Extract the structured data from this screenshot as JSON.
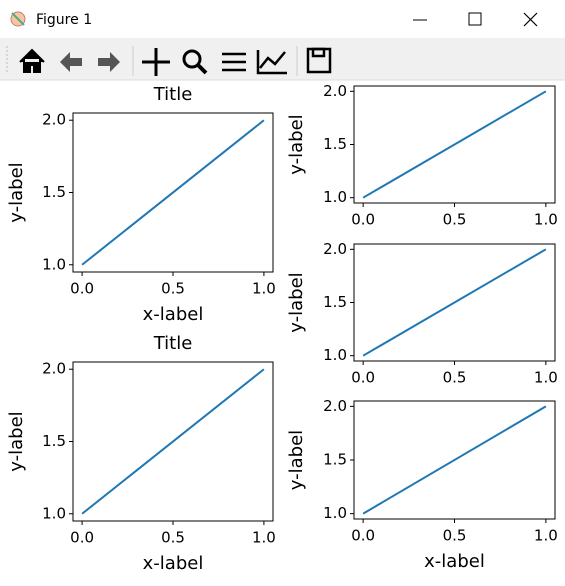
{
  "window": {
    "title": "Figure 1"
  },
  "chart_data": [
    {
      "type": "line",
      "title": "Title",
      "xlabel": "x-label",
      "ylabel": "y-label",
      "x": [
        0,
        1
      ],
      "series": [
        {
          "color": "#1f77b4",
          "values": [
            1,
            2
          ]
        }
      ],
      "xlim": [
        -0.05,
        1.05
      ],
      "ylim": [
        0.95,
        2.05
      ],
      "xticks": [
        {
          "value": 0,
          "label": "0.0"
        },
        {
          "value": 0.5,
          "label": "0.5"
        },
        {
          "value": 1,
          "label": "1.0"
        }
      ],
      "yticks": [
        {
          "value": 1,
          "label": "1.0"
        },
        {
          "value": 1.5,
          "label": "1.5"
        },
        {
          "value": 2,
          "label": "2.0"
        }
      ]
    },
    {
      "type": "line",
      "ylabel": "y-label",
      "x": [
        0,
        1
      ],
      "series": [
        {
          "color": "#1f77b4",
          "values": [
            1,
            2
          ]
        }
      ],
      "xlim": [
        -0.05,
        1.05
      ],
      "ylim": [
        0.95,
        2.05
      ],
      "xticks": [
        {
          "value": 0,
          "label": "0.0"
        },
        {
          "value": 0.5,
          "label": "0.5"
        },
        {
          "value": 1,
          "label": "1.0"
        }
      ],
      "yticks": [
        {
          "value": 1,
          "label": "1.0"
        },
        {
          "value": 1.5,
          "label": "1.5"
        },
        {
          "value": 2,
          "label": "2.0"
        }
      ]
    },
    {
      "type": "line",
      "ylabel": "y-label",
      "x": [
        0,
        1
      ],
      "series": [
        {
          "color": "#1f77b4",
          "values": [
            1,
            2
          ]
        }
      ],
      "xlim": [
        -0.05,
        1.05
      ],
      "ylim": [
        0.95,
        2.05
      ],
      "xticks": [
        {
          "value": 0,
          "label": "0.0"
        },
        {
          "value": 0.5,
          "label": "0.5"
        },
        {
          "value": 1,
          "label": "1.0"
        }
      ],
      "yticks": [
        {
          "value": 1,
          "label": "1.0"
        },
        {
          "value": 1.5,
          "label": "1.5"
        },
        {
          "value": 2,
          "label": "2.0"
        }
      ]
    },
    {
      "type": "line",
      "title": "Title",
      "xlabel": "x-label",
      "ylabel": "y-label",
      "x": [
        0,
        1
      ],
      "series": [
        {
          "color": "#1f77b4",
          "values": [
            1,
            2
          ]
        }
      ],
      "xlim": [
        -0.05,
        1.05
      ],
      "ylim": [
        0.95,
        2.05
      ],
      "xticks": [
        {
          "value": 0,
          "label": "0.0"
        },
        {
          "value": 0.5,
          "label": "0.5"
        },
        {
          "value": 1,
          "label": "1.0"
        }
      ],
      "yticks": [
        {
          "value": 1,
          "label": "1.0"
        },
        {
          "value": 1.5,
          "label": "1.5"
        },
        {
          "value": 2,
          "label": "2.0"
        }
      ]
    },
    {
      "type": "line",
      "xlabel": "x-label",
      "ylabel": "y-label",
      "x": [
        0,
        1
      ],
      "series": [
        {
          "color": "#1f77b4",
          "values": [
            1,
            2
          ]
        }
      ],
      "xlim": [
        -0.05,
        1.05
      ],
      "ylim": [
        0.95,
        2.05
      ],
      "xticks": [
        {
          "value": 0,
          "label": "0.0"
        },
        {
          "value": 0.5,
          "label": "0.5"
        },
        {
          "value": 1,
          "label": "1.0"
        }
      ],
      "yticks": [
        {
          "value": 1,
          "label": "1.0"
        },
        {
          "value": 1.5,
          "label": "1.5"
        },
        {
          "value": 2,
          "label": "2.0"
        }
      ]
    }
  ]
}
